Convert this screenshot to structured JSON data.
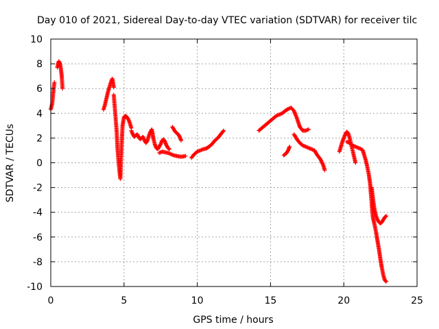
{
  "chart_data": {
    "type": "scatter",
    "title": "Day 010 of 2021, Sidereal Day-to-day VTEC variation (SDTVAR) for receiver tilc",
    "xlabel": "GPS time / hours",
    "ylabel": "SDTVAR / TECUs",
    "xlim": [
      0,
      25
    ],
    "ylim": [
      -10,
      10
    ],
    "x_ticks": [
      0,
      5,
      10,
      15,
      20,
      25
    ],
    "y_ticks": [
      -10,
      -8,
      -6,
      -4,
      -2,
      0,
      2,
      4,
      6,
      8,
      10
    ],
    "grid": true,
    "marker": "plus",
    "color": "#ff0000",
    "series": [
      {
        "name": "SDTVAR",
        "segments": [
          [
            [
              0.0,
              4.3
            ],
            [
              0.1,
              4.8
            ],
            [
              0.15,
              5.4
            ],
            [
              0.2,
              6.0
            ],
            [
              0.25,
              6.5
            ]
          ],
          [
            [
              0.45,
              7.7
            ],
            [
              0.5,
              8.0
            ],
            [
              0.55,
              8.2
            ],
            [
              0.6,
              8.1
            ],
            [
              0.65,
              7.9
            ],
            [
              0.7,
              7.5
            ],
            [
              0.75,
              7.0
            ],
            [
              0.8,
              6.0
            ]
          ],
          [
            [
              3.6,
              4.3
            ],
            [
              3.7,
              4.7
            ],
            [
              3.8,
              5.2
            ],
            [
              3.9,
              5.7
            ],
            [
              4.0,
              6.1
            ],
            [
              4.1,
              6.5
            ],
            [
              4.2,
              6.8
            ],
            [
              4.3,
              6.1
            ]
          ],
          [
            [
              4.3,
              5.5
            ],
            [
              4.4,
              4.0
            ],
            [
              4.5,
              2.5
            ],
            [
              4.55,
              1.2
            ],
            [
              4.6,
              0.5
            ],
            [
              4.65,
              -0.2
            ],
            [
              4.7,
              -0.8
            ],
            [
              4.75,
              -1.3
            ],
            [
              4.8,
              0.5
            ],
            [
              4.85,
              1.8
            ],
            [
              4.9,
              3.0
            ],
            [
              5.0,
              3.7
            ],
            [
              5.1,
              3.8
            ],
            [
              5.2,
              3.7
            ],
            [
              5.3,
              3.5
            ],
            [
              5.4,
              3.2
            ],
            [
              5.5,
              2.8
            ]
          ],
          [
            [
              5.5,
              2.6
            ],
            [
              5.6,
              2.3
            ],
            [
              5.7,
              2.1
            ],
            [
              5.8,
              2.2
            ],
            [
              5.9,
              2.3
            ],
            [
              6.0,
              2.1
            ],
            [
              6.1,
              1.9
            ],
            [
              6.2,
              2.0
            ],
            [
              6.3,
              2.1
            ],
            [
              6.4,
              1.8
            ],
            [
              6.5,
              1.6
            ],
            [
              6.6,
              1.8
            ],
            [
              6.7,
              2.2
            ],
            [
              6.8,
              2.5
            ],
            [
              6.9,
              2.7
            ],
            [
              7.0,
              2.0
            ],
            [
              7.1,
              1.5
            ],
            [
              7.2,
              1.2
            ],
            [
              7.3,
              1.1
            ],
            [
              7.4,
              1.3
            ],
            [
              7.5,
              1.5
            ],
            [
              7.6,
              1.8
            ],
            [
              7.7,
              1.9
            ],
            [
              7.8,
              1.7
            ],
            [
              7.9,
              1.4
            ],
            [
              8.0,
              1.2
            ],
            [
              8.1,
              1.1
            ]
          ],
          [
            [
              8.3,
              2.9
            ],
            [
              8.4,
              2.7
            ],
            [
              8.5,
              2.5
            ],
            [
              8.6,
              2.4
            ],
            [
              8.7,
              2.3
            ],
            [
              8.8,
              2.1
            ],
            [
              8.9,
              1.8
            ]
          ],
          [
            [
              7.4,
              0.8
            ],
            [
              7.6,
              0.9
            ],
            [
              7.8,
              0.85
            ],
            [
              8.0,
              0.8
            ],
            [
              8.2,
              0.7
            ],
            [
              8.4,
              0.6
            ],
            [
              8.6,
              0.55
            ],
            [
              8.8,
              0.5
            ],
            [
              9.0,
              0.5
            ],
            [
              9.2,
              0.55
            ]
          ],
          [
            [
              9.6,
              0.4
            ],
            [
              9.8,
              0.7
            ],
            [
              10.0,
              0.9
            ],
            [
              10.2,
              1.0
            ],
            [
              10.4,
              1.1
            ],
            [
              10.6,
              1.15
            ],
            [
              10.8,
              1.3
            ],
            [
              11.0,
              1.5
            ],
            [
              11.2,
              1.8
            ],
            [
              11.4,
              2.0
            ],
            [
              11.6,
              2.3
            ],
            [
              11.8,
              2.6
            ]
          ],
          [
            [
              14.2,
              2.6
            ],
            [
              14.4,
              2.8
            ],
            [
              14.6,
              3.0
            ],
            [
              14.8,
              3.2
            ],
            [
              15.0,
              3.4
            ],
            [
              15.2,
              3.6
            ],
            [
              15.4,
              3.8
            ],
            [
              15.6,
              3.9
            ],
            [
              15.8,
              4.0
            ],
            [
              16.0,
              4.2
            ],
            [
              16.2,
              4.35
            ],
            [
              16.4,
              4.45
            ],
            [
              16.6,
              4.2
            ],
            [
              16.8,
              3.6
            ],
            [
              17.0,
              2.9
            ],
            [
              17.2,
              2.6
            ],
            [
              17.4,
              2.6
            ],
            [
              17.6,
              2.7
            ]
          ],
          [
            [
              15.9,
              0.6
            ],
            [
              16.0,
              0.7
            ],
            [
              16.1,
              0.8
            ],
            [
              16.2,
              1.0
            ],
            [
              16.3,
              1.3
            ]
          ],
          [
            [
              16.6,
              2.3
            ],
            [
              16.8,
              1.9
            ],
            [
              17.0,
              1.6
            ],
            [
              17.2,
              1.4
            ],
            [
              17.4,
              1.3
            ],
            [
              17.6,
              1.2
            ],
            [
              17.8,
              1.1
            ],
            [
              18.0,
              1.0
            ],
            [
              18.2,
              0.6
            ],
            [
              18.4,
              0.3
            ],
            [
              18.6,
              -0.2
            ],
            [
              18.7,
              -0.6
            ]
          ],
          [
            [
              19.7,
              0.9
            ],
            [
              19.8,
              1.3
            ],
            [
              19.9,
              1.7
            ],
            [
              20.0,
              2.0
            ],
            [
              20.1,
              2.3
            ],
            [
              20.2,
              2.5
            ],
            [
              20.3,
              2.4
            ],
            [
              20.4,
              2.0
            ],
            [
              20.5,
              1.5
            ],
            [
              20.6,
              1.0
            ],
            [
              20.7,
              0.5
            ],
            [
              20.8,
              0.0
            ]
          ],
          [
            [
              20.2,
              1.7
            ],
            [
              20.4,
              1.6
            ],
            [
              20.6,
              1.4
            ],
            [
              20.8,
              1.3
            ],
            [
              21.0,
              1.2
            ],
            [
              21.2,
              1.1
            ],
            [
              21.3,
              1.0
            ],
            [
              21.4,
              0.6
            ],
            [
              21.5,
              0.2
            ],
            [
              21.6,
              -0.3
            ],
            [
              21.7,
              -0.9
            ],
            [
              21.8,
              -1.7
            ],
            [
              21.85,
              -2.5
            ],
            [
              21.9,
              -3.2
            ],
            [
              21.95,
              -4.0
            ],
            [
              22.0,
              -4.5
            ],
            [
              22.1,
              -5.0
            ],
            [
              22.2,
              -5.6
            ],
            [
              22.3,
              -6.3
            ],
            [
              22.4,
              -7.0
            ],
            [
              22.5,
              -7.8
            ],
            [
              22.6,
              -8.5
            ],
            [
              22.7,
              -9.1
            ],
            [
              22.8,
              -9.5
            ],
            [
              22.9,
              -9.6
            ]
          ],
          [
            [
              21.9,
              -2.0
            ],
            [
              22.0,
              -3.0
            ],
            [
              22.1,
              -3.8
            ],
            [
              22.2,
              -4.3
            ],
            [
              22.3,
              -4.6
            ],
            [
              22.4,
              -4.8
            ],
            [
              22.5,
              -4.9
            ],
            [
              22.6,
              -4.8
            ],
            [
              22.7,
              -4.6
            ],
            [
              22.8,
              -4.4
            ],
            [
              22.9,
              -4.3
            ]
          ]
        ]
      }
    ]
  }
}
